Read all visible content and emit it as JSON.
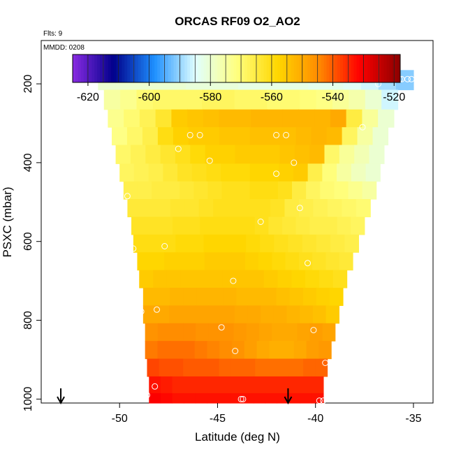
{
  "chart_data": {
    "type": "heatmap",
    "title": "ORCAS RF09 O2_AO2",
    "annotations": {
      "flights": "Flts: 9",
      "date": "MMDD: 0208"
    },
    "xlabel": "Latitude (deg N)",
    "ylabel": "PSXC (mbar)",
    "xlim": [
      -54,
      -34
    ],
    "ylim": [
      1010,
      90
    ],
    "x_ticks": [
      -50,
      -45,
      -40,
      -35
    ],
    "y_ticks": [
      200,
      400,
      600,
      800,
      1000
    ],
    "colorbar": {
      "range": [
        -625,
        -518
      ],
      "ticks": [
        -620,
        -600,
        -580,
        -560,
        -540,
        -520
      ],
      "colors": [
        "#8a2be2",
        "#00008b",
        "#1e90ff",
        "#e0ffff",
        "#ffff80",
        "#ffd700",
        "#ff8c00",
        "#ff0000",
        "#8b0000"
      ]
    },
    "rows": [
      {
        "p": 190,
        "lat_min": -51.1,
        "lat_max": -35.0,
        "values": [
          -580,
          -580,
          -580,
          -580,
          -580,
          -581,
          -581,
          -581,
          -582,
          -582,
          -582,
          -582,
          -583,
          -583,
          -584,
          -586,
          -589,
          -591
        ]
      },
      {
        "p": 240,
        "lat_min": -50.8,
        "lat_max": -35.8,
        "values": [
          -575,
          -573,
          -570,
          -569,
          -569,
          -569,
          -568,
          -568,
          -569,
          -569,
          -570,
          -570,
          -571,
          -572,
          -574,
          -576,
          -580,
          -586
        ]
      },
      {
        "p": 290,
        "lat_min": -50.6,
        "lat_max": -36.0,
        "values": [
          -573,
          -570,
          -567,
          -563,
          -556,
          -555,
          -554,
          -553,
          -553,
          -552,
          -552,
          -552,
          -552,
          -552,
          -550,
          -565,
          -574,
          -580
        ]
      },
      {
        "p": 330,
        "lat_min": -50.4,
        "lat_max": -36.3,
        "values": [
          -572,
          -569,
          -566,
          -560,
          -557,
          -556,
          -556,
          -555,
          -555,
          -554,
          -554,
          -554,
          -553,
          -552,
          -553,
          -568,
          -575,
          -580
        ]
      },
      {
        "p": 380,
        "lat_min": -50.2,
        "lat_max": -36.5,
        "values": [
          -569,
          -567,
          -565,
          -563,
          -561,
          -559,
          -557,
          -557,
          -556,
          -556,
          -556,
          -555,
          -554,
          -553,
          -569,
          -574,
          -577,
          -580
        ]
      },
      {
        "p": 425,
        "lat_min": -50.0,
        "lat_max": -36.7,
        "values": [
          -568,
          -567,
          -566,
          -564,
          -562,
          -561,
          -560,
          -559,
          -559,
          -558,
          -558,
          -557,
          -556,
          -566,
          -571,
          -575,
          -578,
          -580
        ]
      },
      {
        "p": 470,
        "lat_min": -49.8,
        "lat_max": -36.9,
        "values": [
          -566,
          -566,
          -565,
          -565,
          -564,
          -563,
          -562,
          -561,
          -561,
          -560,
          -560,
          -561,
          -565,
          -568,
          -570,
          -571,
          -573,
          -575
        ]
      },
      {
        "p": 515,
        "lat_min": -49.6,
        "lat_max": -37.2,
        "values": [
          -564,
          -564,
          -564,
          -563,
          -563,
          -562,
          -561,
          -561,
          -561,
          -561,
          -562,
          -565,
          -566,
          -567,
          -568,
          -569,
          -570
        ]
      },
      {
        "p": 560,
        "lat_min": -49.4,
        "lat_max": -37.5,
        "values": [
          -562,
          -562,
          -562,
          -561,
          -561,
          -560,
          -560,
          -560,
          -560,
          -561,
          -563,
          -564,
          -565,
          -566,
          -566,
          -567,
          -568
        ]
      },
      {
        "p": 605,
        "lat_min": -49.3,
        "lat_max": -37.8,
        "values": [
          -560,
          -560,
          -560,
          -559,
          -559,
          -558,
          -558,
          -558,
          -559,
          -560,
          -561,
          -562,
          -563,
          -564,
          -565,
          -566
        ]
      },
      {
        "p": 650,
        "lat_min": -49.1,
        "lat_max": -38.1,
        "values": [
          -558,
          -558,
          -557,
          -557,
          -557,
          -556,
          -556,
          -556,
          -557,
          -558,
          -559,
          -560,
          -561,
          -562,
          -563,
          -564
        ]
      },
      {
        "p": 695,
        "lat_min": -49.0,
        "lat_max": -38.4,
        "values": [
          -556,
          -555,
          -555,
          -555,
          -555,
          -555,
          -555,
          -555,
          -555,
          -556,
          -557,
          -558,
          -559,
          -560,
          -561
        ]
      },
      {
        "p": 740,
        "lat_min": -48.8,
        "lat_max": -38.6,
        "values": [
          -553,
          -553,
          -552,
          -552,
          -552,
          -552,
          -552,
          -553,
          -553,
          -553,
          -554,
          -555,
          -556,
          -557,
          -558
        ]
      },
      {
        "p": 785,
        "lat_min": -48.8,
        "lat_max": -38.8,
        "values": [
          -550,
          -550,
          -549,
          -549,
          -549,
          -549,
          -549,
          -550,
          -550,
          -551,
          -551,
          -552,
          -553,
          -554,
          -556
        ]
      },
      {
        "p": 830,
        "lat_min": -48.7,
        "lat_max": -39.0,
        "values": [
          -546,
          -545,
          -545,
          -545,
          -546,
          -546,
          -546,
          -547,
          -548,
          -549,
          -550,
          -550,
          -549,
          -548,
          -549
        ]
      },
      {
        "p": 875,
        "lat_min": -48.7,
        "lat_max": -39.2,
        "values": [
          -543,
          -542,
          -542,
          -542,
          -543,
          -544,
          -545,
          -546,
          -548,
          -550,
          -551,
          -551,
          -550,
          -548,
          -547
        ]
      },
      {
        "p": 920,
        "lat_min": -48.6,
        "lat_max": -39.4,
        "values": [
          -538,
          -539,
          -539,
          -540,
          -540,
          -540,
          -541,
          -541,
          -541,
          -542,
          -542,
          -542,
          -542,
          -541,
          -541
        ]
      },
      {
        "p": 965,
        "lat_min": -48.5,
        "lat_max": -39.6,
        "values": [
          -533,
          -534,
          -535,
          -535,
          -535,
          -535,
          -535,
          -535,
          -535,
          -535,
          -535,
          -535,
          -535,
          -535,
          -535
        ]
      },
      {
        "p": 1005,
        "lat_min": -48.5,
        "lat_max": -39.6,
        "values": [
          -531,
          -532,
          -533,
          -533,
          -533,
          -533,
          -533,
          -533,
          -533,
          -533,
          -533,
          -533,
          -533,
          -533,
          -533
        ]
      }
    ],
    "observations": [
      {
        "lat": -50.9,
        "p": 188
      },
      {
        "lat": -36.8,
        "p": 200
      },
      {
        "lat": -36.4,
        "p": 188
      },
      {
        "lat": -36.0,
        "p": 188
      },
      {
        "lat": -35.7,
        "p": 188
      },
      {
        "lat": -35.6,
        "p": 188
      },
      {
        "lat": -35.3,
        "p": 188
      },
      {
        "lat": -35.1,
        "p": 188
      },
      {
        "lat": -37.6,
        "p": 310
      },
      {
        "lat": -46.4,
        "p": 330
      },
      {
        "lat": -45.9,
        "p": 330
      },
      {
        "lat": -42.0,
        "p": 330
      },
      {
        "lat": -41.5,
        "p": 330
      },
      {
        "lat": -47.0,
        "p": 365
      },
      {
        "lat": -45.4,
        "p": 395
      },
      {
        "lat": -41.1,
        "p": 400
      },
      {
        "lat": -42.0,
        "p": 428
      },
      {
        "lat": -49.6,
        "p": 485
      },
      {
        "lat": -40.8,
        "p": 515
      },
      {
        "lat": -42.8,
        "p": 550
      },
      {
        "lat": -49.3,
        "p": 618
      },
      {
        "lat": -47.7,
        "p": 612
      },
      {
        "lat": -40.4,
        "p": 655
      },
      {
        "lat": -44.2,
        "p": 700
      },
      {
        "lat": -48.9,
        "p": 778
      },
      {
        "lat": -48.1,
        "p": 773
      },
      {
        "lat": -44.8,
        "p": 818
      },
      {
        "lat": -40.1,
        "p": 825
      },
      {
        "lat": -44.1,
        "p": 878
      },
      {
        "lat": -39.5,
        "p": 908
      },
      {
        "lat": -48.2,
        "p": 968
      },
      {
        "lat": -48.7,
        "p": 975
      },
      {
        "lat": -48.6,
        "p": 990
      },
      {
        "lat": -48.7,
        "p": 993
      },
      {
        "lat": -43.8,
        "p": 1000
      },
      {
        "lat": -43.7,
        "p": 1000
      },
      {
        "lat": -39.8,
        "p": 1004
      },
      {
        "lat": -39.6,
        "p": 1004
      }
    ],
    "arrows": [
      {
        "lat": -53.0
      },
      {
        "lat": -41.4
      }
    ]
  }
}
